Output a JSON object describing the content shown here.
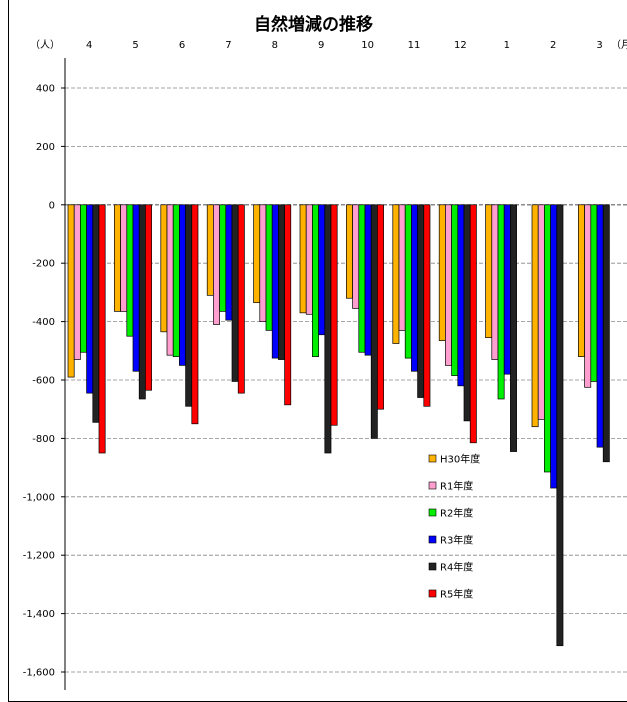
{
  "chart_data": {
    "type": "bar",
    "title": "自然増減の推移",
    "unit_y": "（人）",
    "unit_x": "（月）",
    "categories": [
      "4",
      "5",
      "6",
      "7",
      "8",
      "9",
      "10",
      "11",
      "12",
      "1",
      "2",
      "3"
    ],
    "ylim": [
      -1600,
      400
    ],
    "yticks": [
      400,
      200,
      0,
      -200,
      -400,
      -600,
      -800,
      -1000,
      -1200,
      -1400,
      -1600
    ],
    "ytick_labels": [
      "400",
      "200",
      "0",
      "-200",
      "-400",
      "-600",
      "-800",
      "-1,000",
      "-1,200",
      "-1,400",
      "-1,600"
    ],
    "grid": true,
    "legend_position": "lower-right inside plot",
    "series": [
      {
        "name": "H30年度",
        "color": "#FFB300",
        "values": [
          -590,
          -365,
          -435,
          -310,
          -335,
          -370,
          -320,
          -475,
          -465,
          -455,
          -760,
          -520
        ]
      },
      {
        "name": "R1年度",
        "color": "#FF9FD0",
        "values": [
          -530,
          -365,
          -515,
          -410,
          -400,
          -375,
          -355,
          -430,
          -550,
          -530,
          -735,
          -625
        ]
      },
      {
        "name": "R2年度",
        "color": "#00EE00",
        "values": [
          -505,
          -450,
          -520,
          -365,
          -430,
          -520,
          -505,
          -525,
          -585,
          -665,
          -915,
          -605
        ]
      },
      {
        "name": "R3年度",
        "color": "#0000FF",
        "values": [
          -645,
          -570,
          -550,
          -395,
          -525,
          -445,
          -515,
          -570,
          -620,
          -580,
          -970,
          -830
        ]
      },
      {
        "name": "R4年度",
        "color": "#222222",
        "values": [
          -745,
          -665,
          -690,
          -605,
          -530,
          -850,
          -800,
          -660,
          -740,
          -845,
          -1510,
          -880
        ]
      },
      {
        "name": "R5年度",
        "color": "#FF0000",
        "values": [
          -850,
          -635,
          -750,
          -645,
          -685,
          -755,
          -700,
          -690,
          -815,
          null,
          null,
          null
        ]
      }
    ]
  }
}
